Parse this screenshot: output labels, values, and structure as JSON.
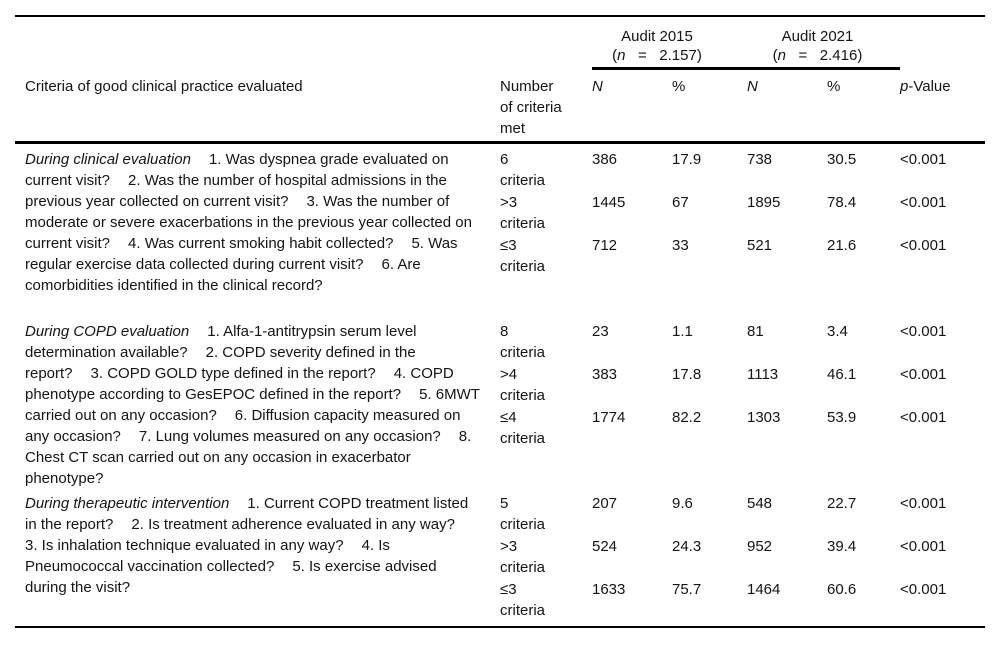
{
  "table": {
    "headers": {
      "criteria": "Criteria of good clinical practice evaluated",
      "number_met": "Number of criteria met",
      "n_2015": "N",
      "pct_2015": "%",
      "n_2021": "N",
      "pct_2021": "%",
      "p_italic": "p",
      "p_rest": "-Value"
    },
    "audits": [
      {
        "title": "Audit 2015",
        "paren": "(",
        "n_var": "n",
        "n_rest": "   =   2.157)"
      },
      {
        "title": "Audit 2021",
        "paren": "(",
        "n_var": "n",
        "n_rest": "   =   2.416)"
      }
    ],
    "groups": [
      {
        "lead": "During clinical evaluation",
        "items": [
          "1. Was dyspnea grade evaluated on current visit?",
          "2. Was the number of hospital admissions in the previous year collected on current visit?",
          "3. Was the number of moderate or severe exacerbations in the previous year collected on current visit?",
          "4. Was current smoking habit collected?",
          "5. Was regular exercise data collected during current visit?",
          "6. Are comorbidities identified in the clinical record?"
        ],
        "rows": [
          {
            "met": "6\ncriteria",
            "n_2015": "386",
            "pct_2015": "17.9",
            "n_2021": "738",
            "pct_2021": "30.5",
            "p": "<0.001"
          },
          {
            "met": ">3\ncriteria",
            "n_2015": "1445",
            "pct_2015": "67",
            "n_2021": "1895",
            "pct_2021": "78.4",
            "p": "<0.001"
          },
          {
            "met": "≤3\ncriteria",
            "n_2015": "712",
            "pct_2015": "33",
            "n_2021": "521",
            "pct_2021": "21.6",
            "p": "<0.001"
          }
        ]
      },
      {
        "lead": "During COPD evaluation",
        "items": [
          "1. Alfa-1-antitrypsin serum level determination available?",
          "2. COPD severity defined in the report?",
          "3. COPD GOLD type defined in the report?",
          "4. COPD phenotype according to GesEPOC defined in the report?",
          "5. 6MWT carried out on any occasion?",
          "6. Diffusion capacity measured on any occasion?",
          "7. Lung volumes measured on any occasion?",
          "8. Chest CT scan carried out on any occasion in exacerbator phenotype?"
        ],
        "rows": [
          {
            "met": "8\ncriteria",
            "n_2015": "23",
            "pct_2015": "1.1",
            "n_2021": "81",
            "pct_2021": "3.4",
            "p": "<0.001"
          },
          {
            "met": ">4\ncriteria",
            "n_2015": "383",
            "pct_2015": "17.8",
            "n_2021": "1113",
            "pct_2021": "46.1",
            "p": "<0.001"
          },
          {
            "met": "≤4\ncriteria",
            "n_2015": "1774",
            "pct_2015": "82.2",
            "n_2021": "1303",
            "pct_2021": "53.9",
            "p": "<0.001"
          }
        ]
      },
      {
        "lead": "During therapeutic intervention",
        "items": [
          "1. Current COPD treatment listed in the report?",
          "2. Is treatment adherence evaluated in any way?",
          "3. Is inhalation technique evaluated in any way?",
          "4. Is Pneumococcal vaccination collected?",
          "5. Is exercise advised during the visit?"
        ],
        "rows": [
          {
            "met": "5\ncriteria",
            "n_2015": "207",
            "pct_2015": "9.6",
            "n_2021": "548",
            "pct_2021": "22.7",
            "p": "<0.001"
          },
          {
            "met": ">3\ncriteria",
            "n_2015": "524",
            "pct_2015": "24.3",
            "n_2021": "952",
            "pct_2021": "39.4",
            "p": "<0.001"
          },
          {
            "met": "≤3\ncriteria",
            "n_2015": "1633",
            "pct_2015": "75.7",
            "n_2021": "1464",
            "pct_2021": "60.6",
            "p": "<0.001"
          }
        ]
      }
    ]
  }
}
